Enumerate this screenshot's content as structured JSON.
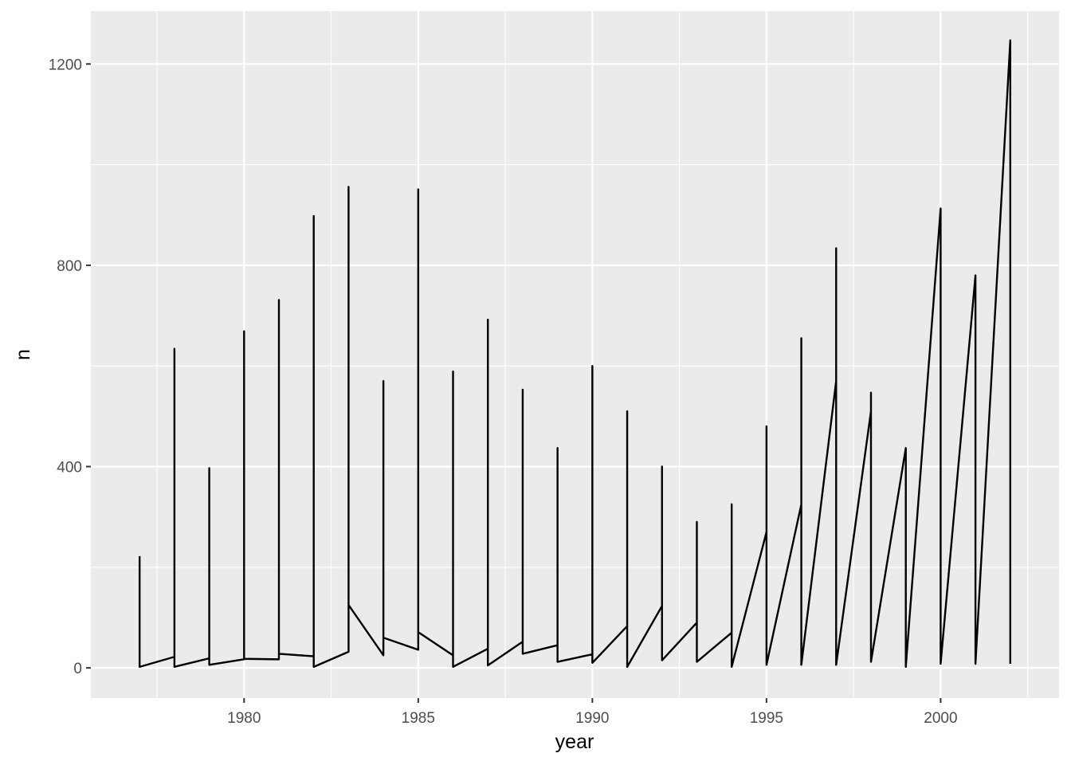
{
  "chart_data": {
    "type": "line",
    "title": "",
    "xlabel": "year",
    "ylabel": "n",
    "xlim": [
      1975.6,
      2003.4
    ],
    "ylim": [
      -60,
      1305
    ],
    "grid": true,
    "x_ticks": [
      1980,
      1985,
      1990,
      1995,
      2000
    ],
    "x_tick_labels": [
      "1980",
      "1985",
      "1990",
      "1995",
      "2000"
    ],
    "y_ticks": [
      0,
      400,
      800,
      1200
    ],
    "y_tick_labels": [
      "0",
      "400",
      "800",
      "1200"
    ],
    "colors": {
      "panel": "#ebebeb",
      "grid": "#ffffff",
      "line": "#000000",
      "tick_text": "#4d4d4d"
    },
    "series": [
      {
        "x": [
          1977,
          1977,
          1977,
          1978,
          1978,
          1978,
          1979,
          1979,
          1979,
          1980,
          1980,
          1980,
          1981,
          1981,
          1981,
          1982,
          1982,
          1982,
          1983,
          1983,
          1983,
          1984,
          1984,
          1984,
          1985,
          1985,
          1985,
          1986,
          1986,
          1986,
          1987,
          1987,
          1987,
          1988,
          1988,
          1988,
          1989,
          1989,
          1989,
          1990,
          1990,
          1990,
          1991,
          1991,
          1991,
          1992,
          1992,
          1992,
          1993,
          1993,
          1993,
          1994,
          1994,
          1994,
          1995,
          1995,
          1995,
          1996,
          1996,
          1996,
          1997,
          1997,
          1997,
          1998,
          1998,
          1998,
          1999,
          1999,
          1999,
          2000,
          2000,
          2000,
          2001,
          2001,
          2001,
          2002,
          2002
        ],
        "y": [
          222,
          2,
          2,
          22,
          634,
          2,
          19,
          397,
          6,
          17,
          669,
          18,
          17,
          731,
          28,
          23,
          898,
          2,
          32,
          956,
          125,
          25,
          570,
          60,
          36,
          951,
          71,
          25,
          589,
          2,
          38,
          692,
          5,
          52,
          553,
          28,
          45,
          437,
          12,
          27,
          600,
          10,
          83,
          510,
          2,
          123,
          400,
          15,
          90,
          290,
          12,
          70,
          325,
          2,
          270,
          480,
          6,
          325,
          655,
          6,
          570,
          834,
          6,
          510,
          547,
          12,
          437,
          437,
          2,
          913,
          913,
          8,
          780,
          780,
          8,
          1247,
          8
        ]
      }
    ]
  }
}
